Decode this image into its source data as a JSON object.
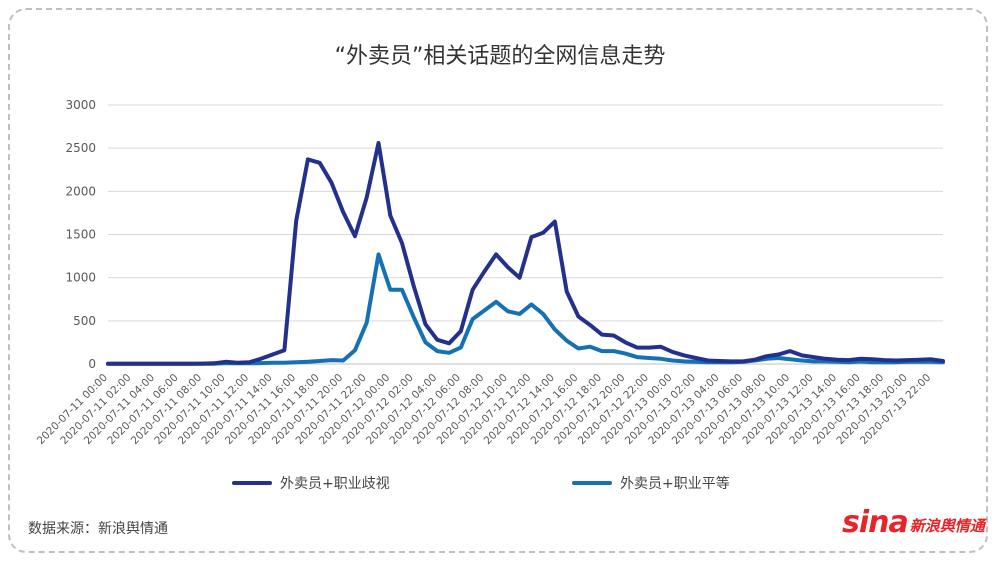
{
  "chart_data": {
    "type": "line",
    "title": "“外卖员”相关话题的全网信息走势",
    "xlabel": "",
    "ylabel": "",
    "ylim": [
      0,
      3000
    ],
    "yticks": [
      0,
      500,
      1000,
      1500,
      2000,
      2500,
      3000
    ],
    "grid": true,
    "legend_position": "bottom",
    "x": [
      "2020-07-11 00:00",
      "2020-07-11 01:00",
      "2020-07-11 02:00",
      "2020-07-11 03:00",
      "2020-07-11 04:00",
      "2020-07-11 05:00",
      "2020-07-11 06:00",
      "2020-07-11 07:00",
      "2020-07-11 08:00",
      "2020-07-11 09:00",
      "2020-07-11 10:00",
      "2020-07-11 11:00",
      "2020-07-11 12:00",
      "2020-07-11 13:00",
      "2020-07-11 14:00",
      "2020-07-11 15:00",
      "2020-07-11 16:00",
      "2020-07-11 17:00",
      "2020-07-11 18:00",
      "2020-07-11 19:00",
      "2020-07-11 20:00",
      "2020-07-11 21:00",
      "2020-07-11 22:00",
      "2020-07-11 23:00",
      "2020-07-12 00:00",
      "2020-07-12 01:00",
      "2020-07-12 02:00",
      "2020-07-12 03:00",
      "2020-07-12 04:00",
      "2020-07-12 05:00",
      "2020-07-12 06:00",
      "2020-07-12 07:00",
      "2020-07-12 08:00",
      "2020-07-12 09:00",
      "2020-07-12 10:00",
      "2020-07-12 11:00",
      "2020-07-12 12:00",
      "2020-07-12 13:00",
      "2020-07-12 14:00",
      "2020-07-12 15:00",
      "2020-07-12 16:00",
      "2020-07-12 17:00",
      "2020-07-12 18:00",
      "2020-07-12 19:00",
      "2020-07-12 20:00",
      "2020-07-12 21:00",
      "2020-07-12 22:00",
      "2020-07-12 23:00",
      "2020-07-13 00:00",
      "2020-07-13 01:00",
      "2020-07-13 02:00",
      "2020-07-13 03:00",
      "2020-07-13 04:00",
      "2020-07-13 05:00",
      "2020-07-13 06:00",
      "2020-07-13 07:00",
      "2020-07-13 08:00",
      "2020-07-13 09:00",
      "2020-07-13 10:00",
      "2020-07-13 11:00",
      "2020-07-13 12:00",
      "2020-07-13 13:00",
      "2020-07-13 14:00",
      "2020-07-13 15:00",
      "2020-07-13 16:00",
      "2020-07-13 17:00",
      "2020-07-13 18:00",
      "2020-07-13 19:00",
      "2020-07-13 20:00",
      "2020-07-13 21:00",
      "2020-07-13 22:00",
      "2020-07-13 23:00"
    ],
    "xticklabels": [
      "2020-07-11 00:00",
      "2020-07-11 02:00",
      "2020-07-11 04:00",
      "2020-07-11 06:00",
      "2020-07-11 08:00",
      "2020-07-11 10:00",
      "2020-07-11 12:00",
      "2020-07-11 14:00",
      "2020-07-11 16:00",
      "2020-07-11 18:00",
      "2020-07-11 20:00",
      "2020-07-11 22:00",
      "2020-07-12 00:00",
      "2020-07-12 02:00",
      "2020-07-12 04:00",
      "2020-07-12 06:00",
      "2020-07-12 08:00",
      "2020-07-12 10:00",
      "2020-07-12 12:00",
      "2020-07-12 14:00",
      "2020-07-12 16:00",
      "2020-07-12 18:00",
      "2020-07-12 20:00",
      "2020-07-12 22:00",
      "2020-07-13 00:00",
      "2020-07-13 02:00",
      "2020-07-13 04:00",
      "2020-07-13 06:00",
      "2020-07-13 08:00",
      "2020-07-13 10:00",
      "2020-07-13 12:00",
      "2020-07-13 14:00",
      "2020-07-13 16:00",
      "2020-07-13 18:00",
      "2020-07-13 20:00",
      "2020-07-13 22:00"
    ],
    "series": [
      {
        "name": "外卖员+职业歧视",
        "color": "#23318c",
        "values": [
          3,
          3,
          3,
          3,
          3,
          3,
          3,
          4,
          5,
          8,
          25,
          15,
          20,
          60,
          110,
          160,
          1660,
          2370,
          2330,
          2100,
          1760,
          1480,
          1930,
          2560,
          1720,
          1400,
          900,
          460,
          280,
          240,
          380,
          860,
          1070,
          1270,
          1120,
          1000,
          1470,
          1520,
          1650,
          840,
          550,
          450,
          340,
          330,
          250,
          190,
          190,
          200,
          140,
          100,
          70,
          40,
          35,
          30,
          30,
          50,
          90,
          110,
          150,
          100,
          80,
          60,
          50,
          45,
          60,
          55,
          45,
          40,
          45,
          50,
          55,
          35
        ]
      },
      {
        "name": "外卖员+职业平等",
        "color": "#1571b4",
        "values": [
          2,
          2,
          2,
          2,
          2,
          2,
          2,
          2,
          2,
          3,
          10,
          8,
          8,
          10,
          15,
          15,
          20,
          25,
          35,
          45,
          40,
          160,
          480,
          1270,
          860,
          860,
          540,
          250,
          150,
          130,
          190,
          520,
          620,
          720,
          610,
          580,
          690,
          580,
          400,
          270,
          180,
          200,
          150,
          150,
          120,
          80,
          70,
          60,
          40,
          30,
          25,
          20,
          20,
          20,
          25,
          40,
          60,
          70,
          55,
          40,
          30,
          30,
          25,
          20,
          30,
          20,
          20,
          20,
          25,
          25,
          25,
          20
        ]
      }
    ]
  },
  "footer": {
    "source": "数据来源：新浪舆情通",
    "logo_sina": "sina",
    "logo_text": "新浪舆情通"
  }
}
